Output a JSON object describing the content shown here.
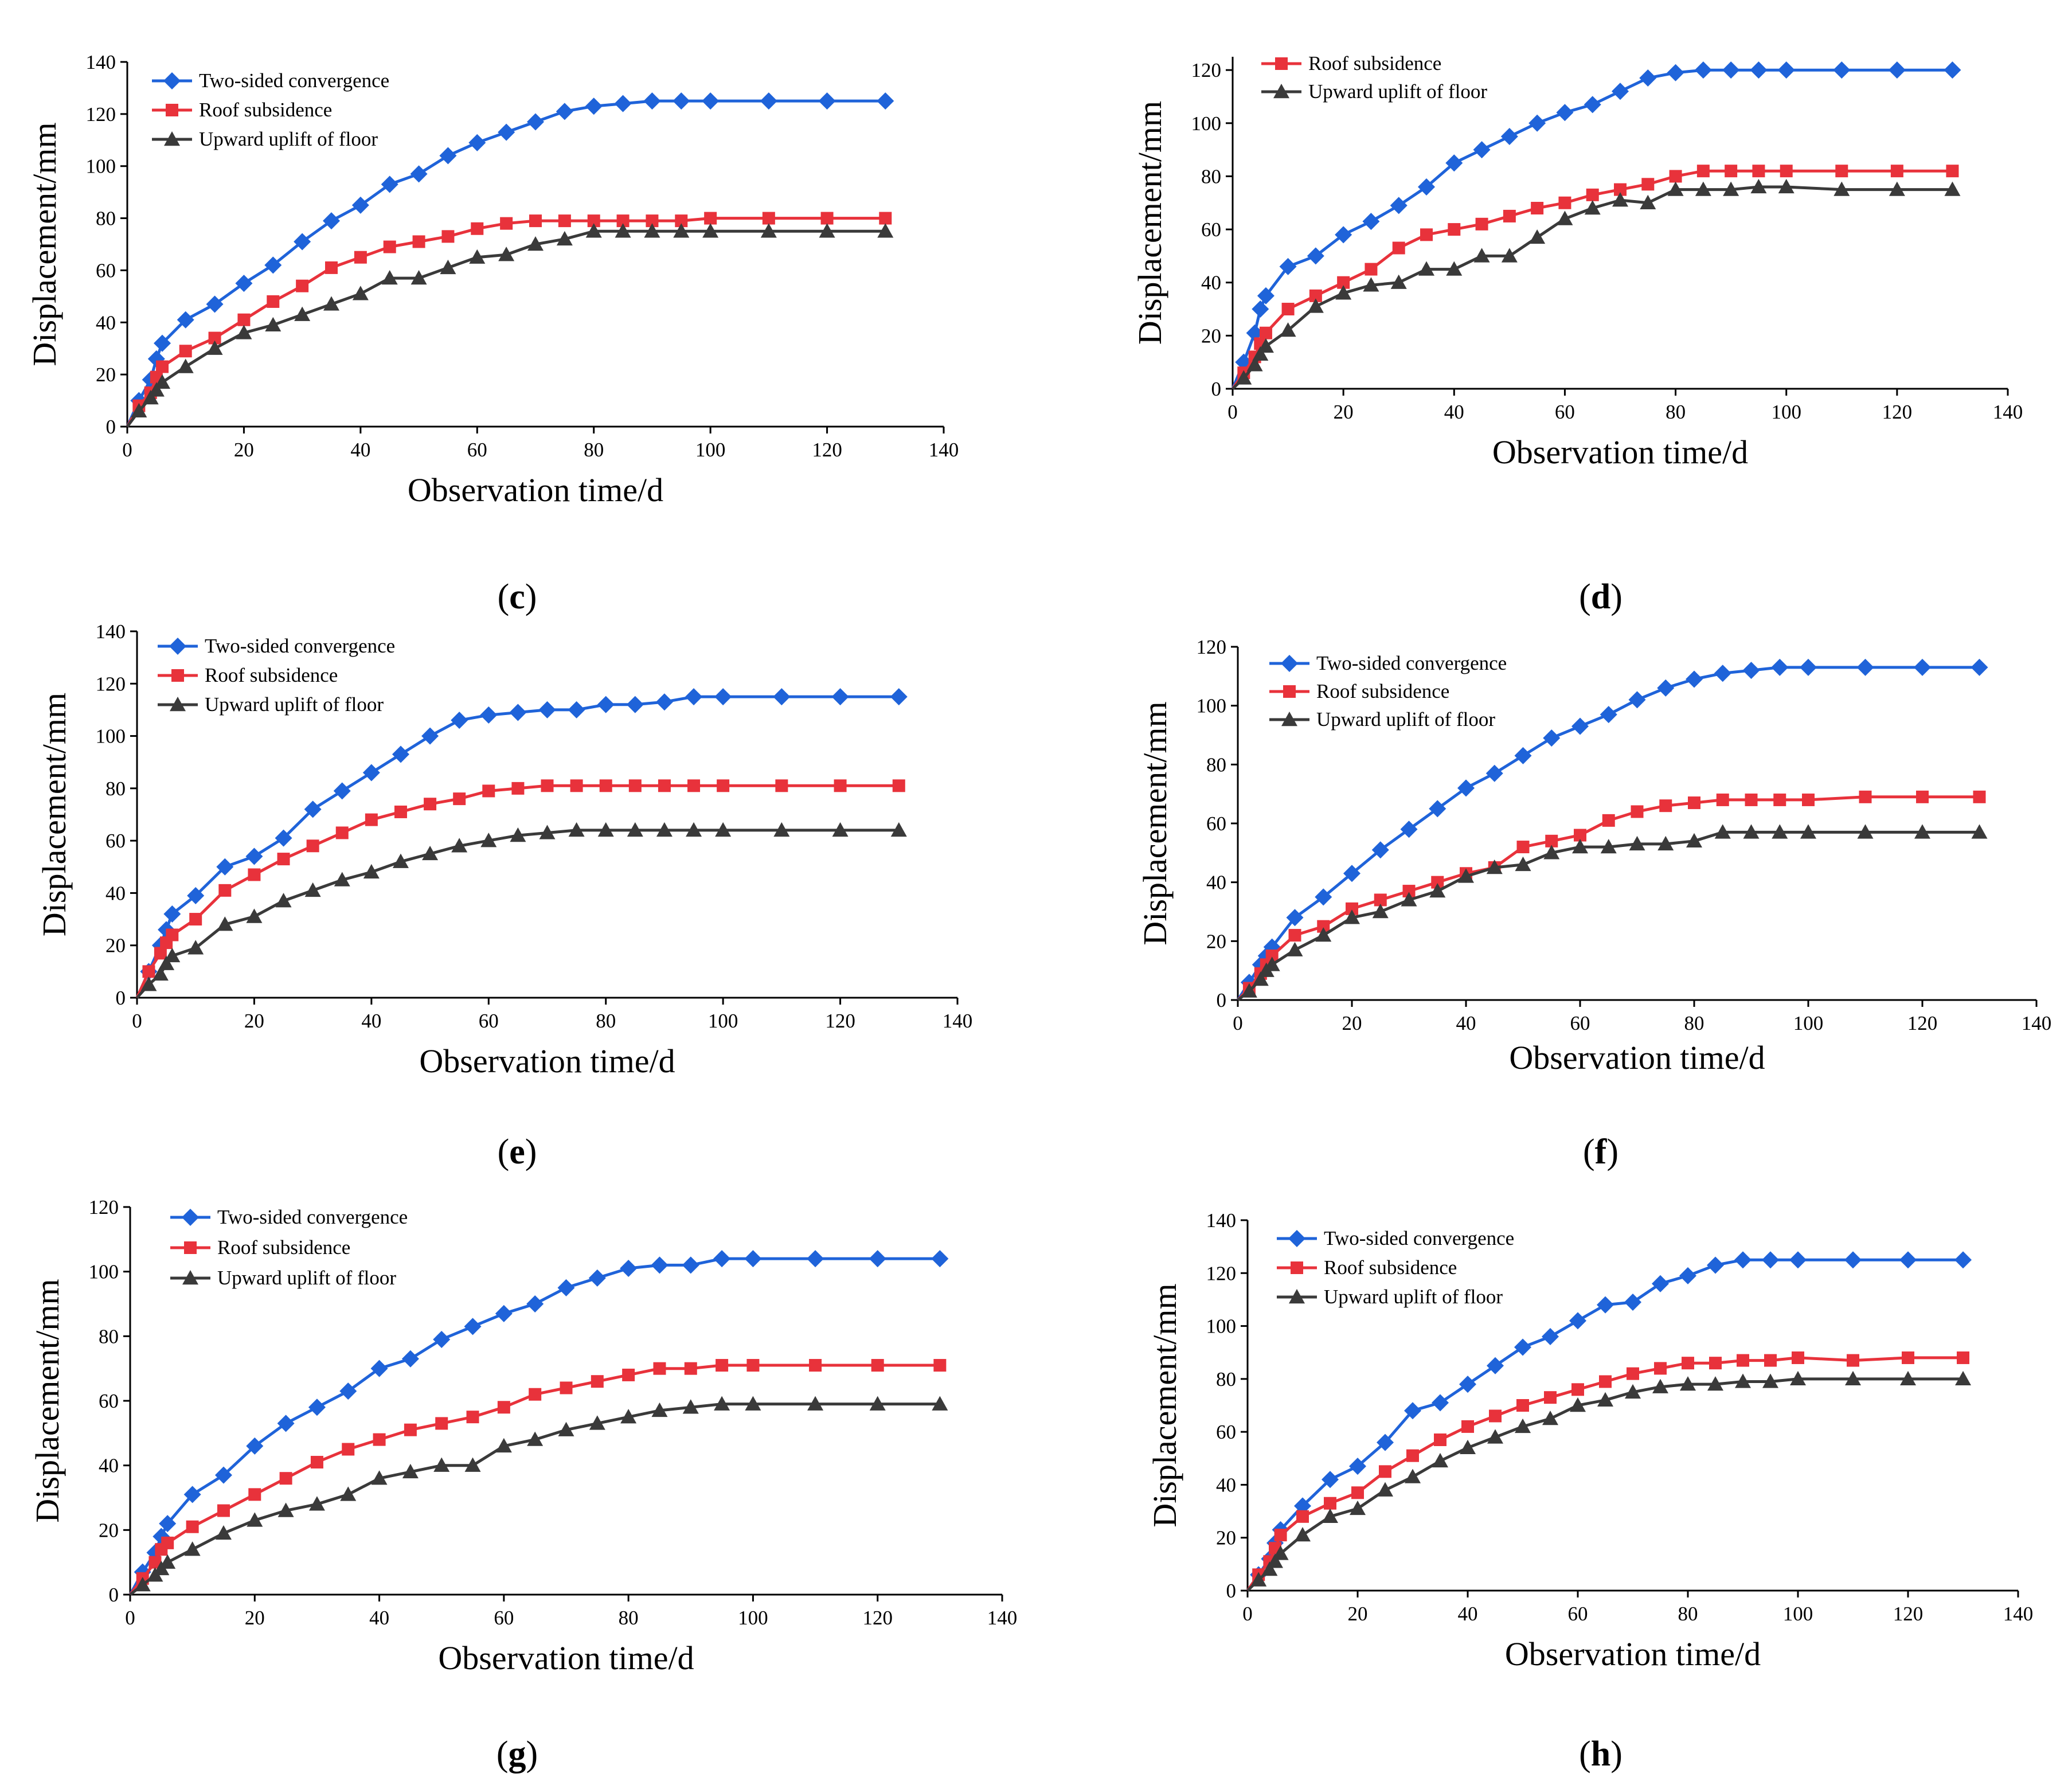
{
  "colors": {
    "two_sided": "#1f63d9",
    "roof": "#e8323b",
    "floor": "#3a3a3a"
  },
  "chart_data": [
    {
      "panel": "c",
      "type": "line",
      "xlabel": "Observation time/d",
      "ylabel": "Displacement/mm",
      "xlim": [
        0,
        140
      ],
      "ylim": [
        0,
        140
      ],
      "xticks": [
        0,
        20,
        40,
        60,
        80,
        100,
        120,
        140
      ],
      "yticks": [
        0,
        20,
        40,
        60,
        80,
        100,
        120,
        140
      ],
      "legend": [
        "Two-sided convergence",
        "Roof subsidence",
        "Upward uplift of floor"
      ],
      "x": [
        0,
        2,
        4,
        5,
        6,
        10,
        15,
        20,
        25,
        30,
        35,
        40,
        45,
        50,
        55,
        60,
        65,
        70,
        75,
        80,
        85,
        90,
        95,
        100,
        110,
        120,
        130
      ],
      "series": [
        {
          "name": "Two-sided convergence",
          "key": "two_sided",
          "marker": "diamond",
          "values": [
            0,
            10,
            18,
            26,
            32,
            41,
            47,
            55,
            62,
            71,
            79,
            85,
            93,
            97,
            104,
            109,
            113,
            117,
            121,
            123,
            124,
            125,
            125,
            125,
            125,
            125,
            125
          ]
        },
        {
          "name": "Roof subsidence",
          "key": "roof",
          "marker": "square",
          "values": [
            0,
            8,
            13,
            19,
            23,
            29,
            34,
            41,
            48,
            54,
            61,
            65,
            69,
            71,
            73,
            76,
            78,
            79,
            79,
            79,
            79,
            79,
            79,
            80,
            80,
            80,
            80
          ]
        },
        {
          "name": "Upward uplift of floor",
          "key": "floor",
          "marker": "triangle",
          "values": [
            0,
            6,
            11,
            14,
            17,
            23,
            30,
            36,
            39,
            43,
            47,
            51,
            57,
            57,
            61,
            65,
            66,
            70,
            72,
            75,
            75,
            75,
            75,
            75,
            75,
            75,
            75
          ]
        }
      ]
    },
    {
      "panel": "d",
      "type": "line",
      "xlabel": "Observation time/d",
      "ylabel": "Displacement/mm",
      "xlim": [
        0,
        140
      ],
      "ylim": [
        0,
        125
      ],
      "xticks": [
        0,
        20,
        40,
        60,
        80,
        100,
        120,
        140
      ],
      "yticks": [
        0,
        20,
        40,
        60,
        80,
        100,
        120
      ],
      "legend": [
        "Roof subsidence",
        "Upward uplift of floor"
      ],
      "x": [
        0,
        2,
        4,
        5,
        6,
        10,
        15,
        20,
        25,
        30,
        35,
        40,
        45,
        50,
        55,
        60,
        65,
        70,
        75,
        80,
        85,
        90,
        95,
        100,
        110,
        120,
        130
      ],
      "series": [
        {
          "name": "Two-sided convergence",
          "key": "two_sided",
          "marker": "diamond",
          "values": [
            0,
            10,
            21,
            30,
            35,
            46,
            50,
            58,
            63,
            69,
            76,
            85,
            90,
            95,
            100,
            104,
            107,
            112,
            117,
            119,
            120,
            120,
            120,
            120,
            120,
            120,
            120
          ]
        },
        {
          "name": "Roof subsidence",
          "key": "roof",
          "marker": "square",
          "values": [
            0,
            6,
            12,
            17,
            21,
            30,
            35,
            40,
            45,
            53,
            58,
            60,
            62,
            65,
            68,
            70,
            73,
            75,
            77,
            80,
            82,
            82,
            82,
            82,
            82,
            82,
            82
          ]
        },
        {
          "name": "Upward uplift of floor",
          "key": "floor",
          "marker": "triangle",
          "values": [
            0,
            4,
            9,
            13,
            16,
            22,
            31,
            36,
            39,
            40,
            45,
            45,
            50,
            50,
            57,
            64,
            68,
            71,
            70,
            75,
            75,
            75,
            76,
            76,
            75,
            75,
            75
          ]
        }
      ]
    },
    {
      "panel": "e",
      "type": "line",
      "xlabel": "Observation time/d",
      "ylabel": "Displacement/mm",
      "xlim": [
        0,
        140
      ],
      "ylim": [
        0,
        140
      ],
      "xticks": [
        0,
        20,
        40,
        60,
        80,
        100,
        120,
        140
      ],
      "yticks": [
        0,
        20,
        40,
        60,
        80,
        100,
        120,
        140
      ],
      "legend": [
        "Two-sided convergence",
        "Roof subsidence",
        "Upward uplift of floor"
      ],
      "x": [
        0,
        2,
        4,
        5,
        6,
        10,
        15,
        20,
        25,
        30,
        35,
        40,
        45,
        50,
        55,
        60,
        65,
        70,
        75,
        80,
        85,
        90,
        95,
        100,
        110,
        120,
        130
      ],
      "series": [
        {
          "name": "Two-sided convergence",
          "key": "two_sided",
          "marker": "diamond",
          "values": [
            0,
            10,
            20,
            26,
            32,
            39,
            50,
            54,
            61,
            72,
            79,
            86,
            93,
            100,
            106,
            108,
            109,
            110,
            110,
            112,
            112,
            113,
            115,
            115,
            115,
            115,
            115
          ]
        },
        {
          "name": "Roof subsidence",
          "key": "roof",
          "marker": "square",
          "values": [
            0,
            10,
            17,
            21,
            24,
            30,
            41,
            47,
            53,
            58,
            63,
            68,
            71,
            74,
            76,
            79,
            80,
            81,
            81,
            81,
            81,
            81,
            81,
            81,
            81,
            81,
            81
          ]
        },
        {
          "name": "Upward uplift of floor",
          "key": "floor",
          "marker": "triangle",
          "values": [
            0,
            5,
            9,
            13,
            16,
            19,
            28,
            31,
            37,
            41,
            45,
            48,
            52,
            55,
            58,
            60,
            62,
            63,
            64,
            64,
            64,
            64,
            64,
            64,
            64,
            64,
            64
          ]
        }
      ]
    },
    {
      "panel": "f",
      "type": "line",
      "xlabel": "Observation time/d",
      "ylabel": "Displacement/mm",
      "xlim": [
        0,
        140
      ],
      "ylim": [
        0,
        120
      ],
      "xticks": [
        0,
        20,
        40,
        60,
        80,
        100,
        120,
        140
      ],
      "yticks": [
        0,
        20,
        40,
        60,
        80,
        100,
        120
      ],
      "legend": [
        "Two-sided convergence",
        "Roof subsidence",
        "Upward uplift of floor"
      ],
      "x": [
        0,
        2,
        4,
        5,
        6,
        10,
        15,
        20,
        25,
        30,
        35,
        40,
        45,
        50,
        55,
        60,
        65,
        70,
        75,
        80,
        85,
        90,
        95,
        100,
        110,
        120,
        130
      ],
      "series": [
        {
          "name": "Two-sided convergence",
          "key": "two_sided",
          "marker": "diamond",
          "values": [
            0,
            6,
            12,
            15,
            18,
            28,
            35,
            43,
            51,
            58,
            65,
            72,
            77,
            83,
            89,
            93,
            97,
            102,
            106,
            109,
            111,
            112,
            113,
            113,
            113,
            113,
            113
          ]
        },
        {
          "name": "Roof subsidence",
          "key": "roof",
          "marker": "square",
          "values": [
            0,
            4,
            9,
            12,
            15,
            22,
            25,
            31,
            34,
            37,
            40,
            43,
            45,
            52,
            54,
            56,
            61,
            64,
            66,
            67,
            68,
            68,
            68,
            68,
            69,
            69,
            69
          ]
        },
        {
          "name": "Upward uplift of floor",
          "key": "floor",
          "marker": "triangle",
          "values": [
            0,
            3,
            7,
            10,
            12,
            17,
            22,
            28,
            30,
            34,
            37,
            42,
            45,
            46,
            50,
            52,
            52,
            53,
            53,
            54,
            57,
            57,
            57,
            57,
            57,
            57,
            57
          ]
        }
      ]
    },
    {
      "panel": "g",
      "type": "line",
      "xlabel": "Observation time/d",
      "ylabel": "Displacement/mm",
      "xlim": [
        0,
        140
      ],
      "ylim": [
        0,
        120
      ],
      "xticks": [
        0,
        20,
        40,
        60,
        80,
        100,
        120,
        140
      ],
      "yticks": [
        0,
        20,
        40,
        60,
        80,
        100,
        120
      ],
      "legend": [
        "Two-sided convergence",
        "Roof subsidence",
        "Upward uplift of floor"
      ],
      "x": [
        0,
        2,
        4,
        5,
        6,
        10,
        15,
        20,
        25,
        30,
        35,
        40,
        45,
        50,
        55,
        60,
        65,
        70,
        75,
        80,
        85,
        90,
        95,
        100,
        110,
        120,
        130
      ],
      "series": [
        {
          "name": "Two-sided convergence",
          "key": "two_sided",
          "marker": "diamond",
          "values": [
            0,
            7,
            13,
            18,
            22,
            31,
            37,
            46,
            53,
            58,
            63,
            70,
            73,
            79,
            83,
            87,
            90,
            95,
            98,
            101,
            102,
            102,
            104,
            104,
            104,
            104,
            104
          ]
        },
        {
          "name": "Roof subsidence",
          "key": "roof",
          "marker": "square",
          "values": [
            0,
            5,
            10,
            14,
            16,
            21,
            26,
            31,
            36,
            41,
            45,
            48,
            51,
            53,
            55,
            58,
            62,
            64,
            66,
            68,
            70,
            70,
            71,
            71,
            71,
            71,
            71
          ]
        },
        {
          "name": "Upward uplift of floor",
          "key": "floor",
          "marker": "triangle",
          "values": [
            0,
            3,
            6,
            8,
            10,
            14,
            19,
            23,
            26,
            28,
            31,
            36,
            38,
            40,
            40,
            46,
            48,
            51,
            53,
            55,
            57,
            58,
            59,
            59,
            59,
            59,
            59
          ]
        }
      ]
    },
    {
      "panel": "h",
      "type": "line",
      "xlabel": "Observation time/d",
      "ylabel": "Displacement/mm",
      "xlim": [
        0,
        140
      ],
      "ylim": [
        0,
        140
      ],
      "xticks": [
        0,
        20,
        40,
        60,
        80,
        100,
        120,
        140
      ],
      "yticks": [
        0,
        20,
        40,
        60,
        80,
        100,
        120,
        140
      ],
      "legend": [
        "Two-sided convergence",
        "Roof subsidence",
        "Upward uplift of floor"
      ],
      "x": [
        0,
        2,
        4,
        5,
        6,
        10,
        15,
        20,
        25,
        30,
        35,
        40,
        45,
        50,
        55,
        60,
        65,
        70,
        75,
        80,
        85,
        90,
        95,
        100,
        110,
        120,
        130
      ],
      "series": [
        {
          "name": "Two-sided convergence",
          "key": "two_sided",
          "marker": "diamond",
          "values": [
            0,
            6,
            12,
            18,
            23,
            32,
            42,
            47,
            56,
            68,
            71,
            78,
            85,
            92,
            96,
            102,
            108,
            109,
            116,
            119,
            123,
            125,
            125,
            125,
            125,
            125,
            125
          ]
        },
        {
          "name": "Roof subsidence",
          "key": "roof",
          "marker": "square",
          "values": [
            0,
            6,
            11,
            16,
            21,
            28,
            33,
            37,
            45,
            51,
            57,
            62,
            66,
            70,
            73,
            76,
            79,
            82,
            84,
            86,
            86,
            87,
            87,
            88,
            87,
            88,
            88
          ]
        },
        {
          "name": "Upward uplift of floor",
          "key": "floor",
          "marker": "triangle",
          "values": [
            0,
            4,
            8,
            11,
            14,
            21,
            28,
            31,
            38,
            43,
            49,
            54,
            58,
            62,
            65,
            70,
            72,
            75,
            77,
            78,
            78,
            79,
            79,
            80,
            80,
            80,
            80
          ]
        }
      ]
    }
  ]
}
